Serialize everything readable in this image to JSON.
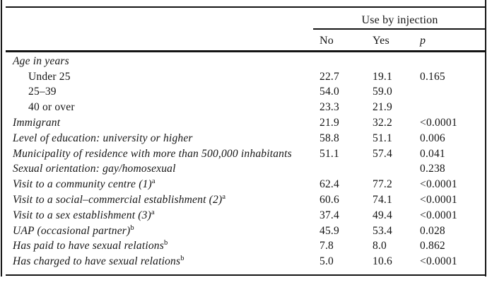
{
  "table": {
    "spanner_label": "Use by injection",
    "columns": {
      "no": "No",
      "yes": "Yes",
      "p": "p"
    },
    "rows": [
      {
        "label": "Age in years",
        "indent": false,
        "sup": "",
        "no": "",
        "yes": "",
        "p": ""
      },
      {
        "label": "Under 25",
        "indent": true,
        "sup": "",
        "no": "22.7",
        "yes": "19.1",
        "p": "0.165"
      },
      {
        "label": "25–39",
        "indent": true,
        "sup": "",
        "no": "54.0",
        "yes": "59.0",
        "p": ""
      },
      {
        "label": "40 or over",
        "indent": true,
        "sup": "",
        "no": "23.3",
        "yes": "21.9",
        "p": ""
      },
      {
        "label": "Immigrant",
        "indent": false,
        "sup": "",
        "no": "21.9",
        "yes": "32.2",
        "p": "<0.0001"
      },
      {
        "label": "Level of education: university or higher",
        "indent": false,
        "sup": "",
        "no": "58.8",
        "yes": "51.1",
        "p": "0.006"
      },
      {
        "label": "Municipality of residence with more than 500,000 inhabitants",
        "indent": false,
        "sup": "",
        "no": "51.1",
        "yes": "57.4",
        "p": "0.041"
      },
      {
        "label": "Sexual orientation: gay/homosexual",
        "indent": false,
        "sup": "",
        "no": "",
        "yes": "",
        "p": "0.238"
      },
      {
        "label": "Visit to a community centre (1)",
        "indent": false,
        "sup": "a",
        "no": "62.4",
        "yes": "77.2",
        "p": "<0.0001"
      },
      {
        "label": "Visit to a social–commercial establishment (2)",
        "indent": false,
        "sup": "a",
        "no": "60.6",
        "yes": "74.1",
        "p": "<0.0001"
      },
      {
        "label": "Visit to a sex establishment (3)",
        "indent": false,
        "sup": "a",
        "no": "37.4",
        "yes": "49.4",
        "p": "<0.0001"
      },
      {
        "label": "UAP (occasional partner)",
        "indent": false,
        "sup": "b",
        "no": "45.9",
        "yes": "53.4",
        "p": "0.028"
      },
      {
        "label": "Has paid to have sexual relations",
        "indent": false,
        "sup": "b",
        "no": "7.8",
        "yes": "8.0",
        "p": "0.862"
      },
      {
        "label": "Has charged to have sexual relations",
        "indent": false,
        "sup": "b",
        "no": "5.0",
        "yes": "10.6",
        "p": "<0.0001"
      }
    ]
  }
}
